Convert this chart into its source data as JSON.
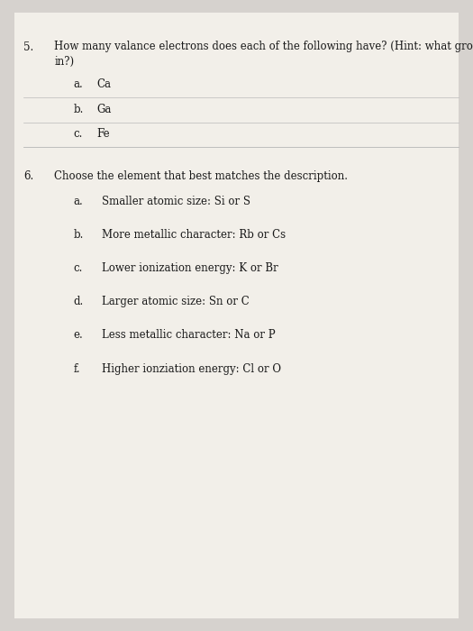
{
  "bg_color": "#d6d2ce",
  "paper_color": "#f2efe9",
  "text_color": "#1a1a1a",
  "question5": {
    "number": "5.",
    "text_line1": "How many valance electrons does each of the following have? (Hint: what group are they",
    "text_line2": "in?)",
    "sub_items": [
      {
        "label": "a.",
        "text": "Ca"
      },
      {
        "label": "b.",
        "text": "Ga"
      },
      {
        "label": "c.",
        "text": "Fe"
      }
    ]
  },
  "question6": {
    "number": "6.",
    "text": "Choose the element that best matches the description.",
    "sub_items": [
      {
        "label": "a.",
        "text": "Smaller atomic size: Si or S"
      },
      {
        "label": "b.",
        "text": "More metallic character: Rb or Cs"
      },
      {
        "label": "c.",
        "text": "Lower ionization energy: K or Br"
      },
      {
        "label": "d.",
        "text": "Larger atomic size: Sn or C"
      },
      {
        "label": "e.",
        "text": "Less metallic character: Na or P"
      },
      {
        "label": "f.",
        "text": "Higher ionziation energy: Cl or O"
      }
    ]
  }
}
